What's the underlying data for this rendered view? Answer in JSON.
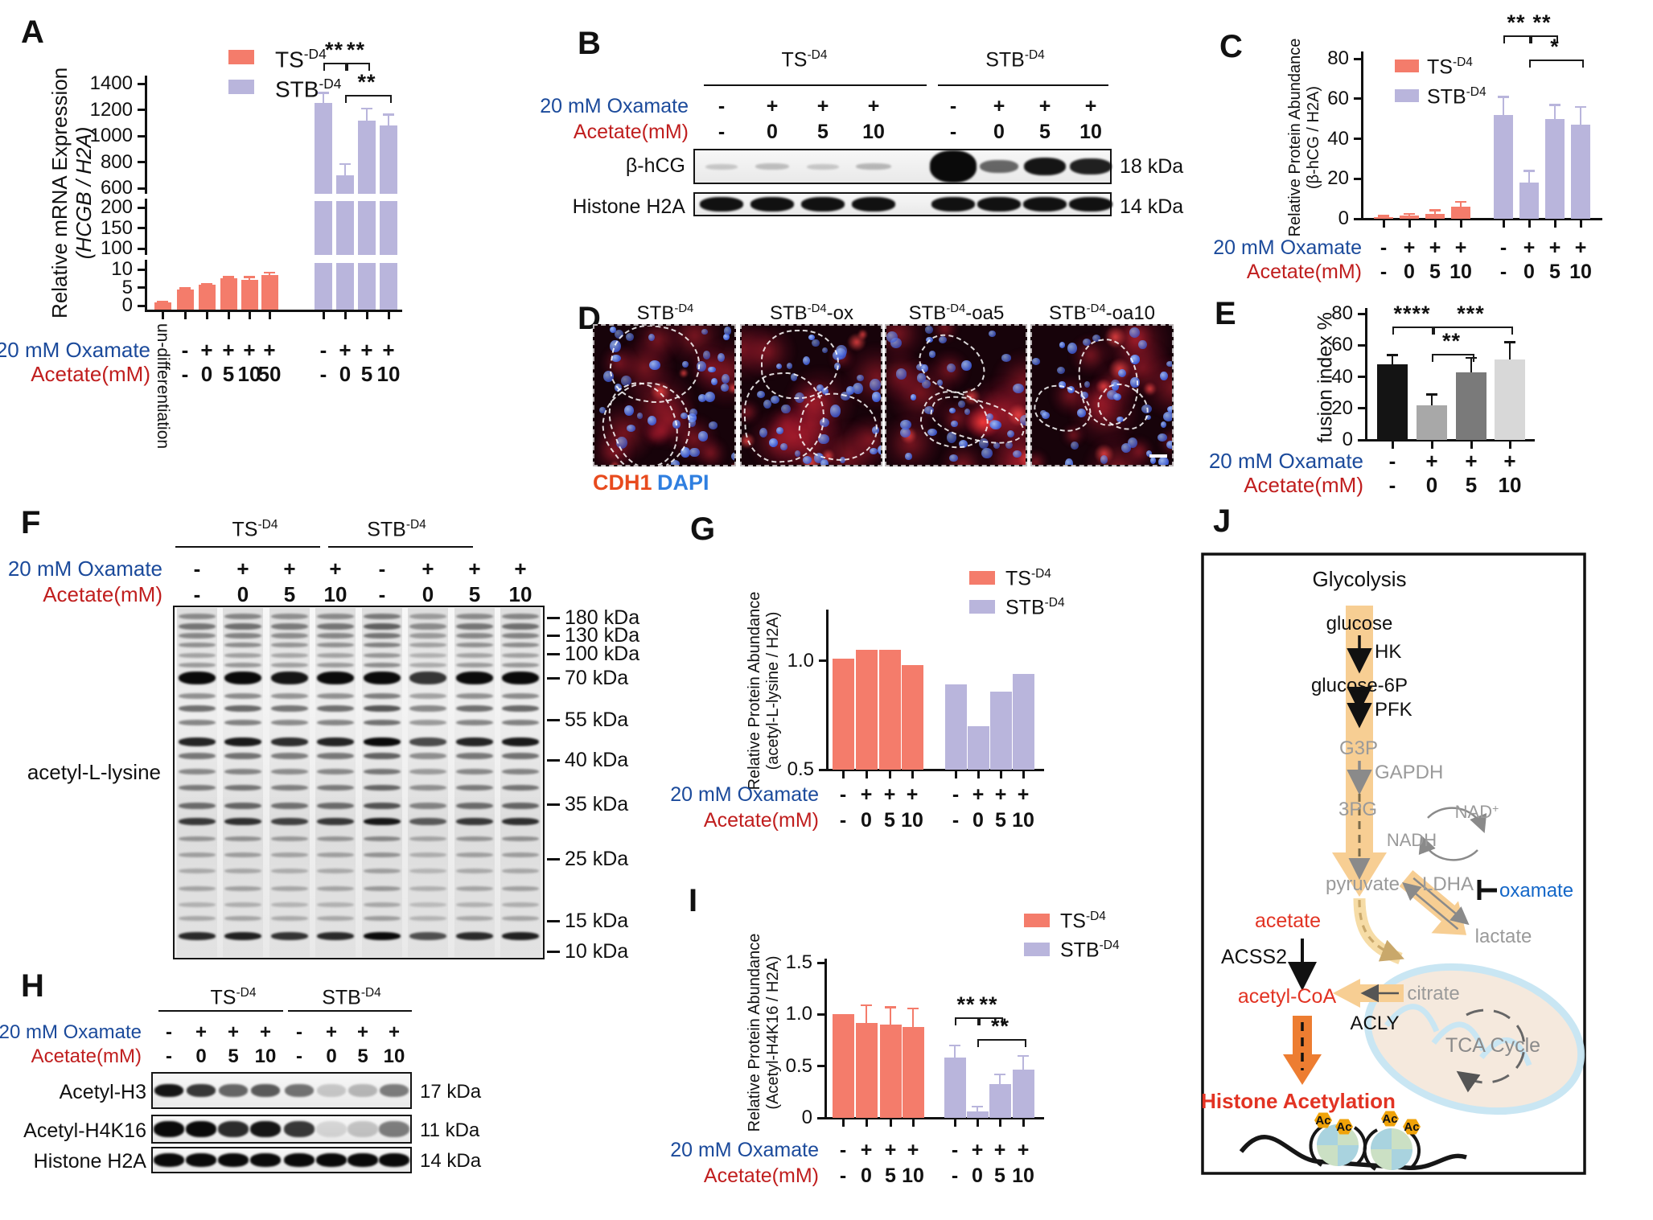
{
  "panels": {
    "A": "A",
    "B": "B",
    "C": "C",
    "D": "D",
    "E": "E",
    "F": "F",
    "G": "G",
    "H": "H",
    "I": "I",
    "J": "J"
  },
  "rows": {
    "oxamate": "20 mM Oxamate",
    "acetate": "Acetate(mM)"
  },
  "series_labels": {
    "ts": {
      "base": "TS",
      "sup": "-D4"
    },
    "stb": {
      "base": "STB",
      "sup": "-D4"
    }
  },
  "colors": {
    "ts": "#F47C6B",
    "stb": "#B9B5DC",
    "oxamate": "#1B4A9B",
    "acetate": "#C01E1E",
    "cdh1": "#E84B1E",
    "dapi": "#2F7FE0",
    "gray_text": "#9A9A9A",
    "tan": "#F7CE93",
    "orange": "#ED7D31",
    "red": "#E23323",
    "blue": "#1467C8",
    "black": "#111111"
  },
  "ylabels": {
    "A1": "Relative mRNA Expression",
    "A2": "(HCGB / H2A)",
    "C1": "Relative Protein Abundance",
    "C2": "(β-hCG / H2A)",
    "E1": "fusion index %",
    "G1": "Relative Protein Abundance",
    "G2": "(acetyl-L-lysine / H2A)",
    "I1": "Relative Protein Abundance",
    "I2": "(Acetyl-H4K16 / H2A)"
  },
  "chart_data": [
    {
      "panel": "A",
      "type": "bar",
      "title": "",
      "ylabel": "Relative mRNA Expression (HCGB / H2A)",
      "ylim": [
        0,
        1400
      ],
      "axis_breaks": [
        [
          10,
          100
        ],
        [
          200,
          600
        ]
      ],
      "legend_position": "top-left",
      "yticks": [
        {
          "v": 0,
          "l": "0"
        },
        {
          "v": 5,
          "l": "5"
        },
        {
          "v": 10,
          "l": "10"
        },
        {
          "v": 100,
          "l": "100"
        },
        {
          "v": 150,
          "l": "150"
        },
        {
          "v": 200,
          "l": "200"
        },
        {
          "v": 600,
          "l": "600"
        },
        {
          "v": 800,
          "l": "800"
        },
        {
          "v": 1000,
          "l": "1000"
        },
        {
          "v": 1200,
          "l": "1200"
        },
        {
          "v": 1400,
          "l": "1400"
        }
      ],
      "categories": [
        "un-differentiation",
        "TS -/-",
        "TS +/0",
        "TS +/5",
        "TS +/10",
        "TS +/50",
        "STB -/-",
        "STB +/0",
        "STB +/5",
        "STB +/10"
      ],
      "series": [
        {
          "name": "TS-D4",
          "key": "ts",
          "values": [
            1,
            4.5,
            5.7,
            7.6,
            7.1,
            8.5
          ],
          "errors": [
            0.15,
            0.3,
            0.3,
            0.35,
            0.8,
            0.7
          ]
        },
        {
          "name": "STB-D4",
          "key": "stb",
          "values": [
            1250,
            700,
            1120,
            1080
          ],
          "errors": [
            80,
            85,
            90,
            85
          ]
        }
      ],
      "xrows": {
        "oxamate": [
          [
            "",
            "-",
            "+",
            "+",
            "+",
            "+"
          ],
          [
            "-",
            "+",
            "+",
            "+"
          ]
        ],
        "acetate": [
          [
            "",
            "-",
            "0",
            "5",
            "10",
            "50"
          ],
          [
            "-",
            "0",
            "5",
            "10"
          ]
        ]
      },
      "sig": [
        {
          "label": "**",
          "g": 1,
          "i1": 0,
          "i2": 1
        },
        {
          "label": "**",
          "g": 1,
          "i1": 1,
          "i2": 2
        },
        {
          "label": "**",
          "g": 1,
          "i1": 1,
          "i2": 3
        }
      ],
      "rotated_xlabel": "un-differentiation"
    },
    {
      "panel": "C",
      "type": "bar",
      "title": "",
      "ylabel": "Relative Protein Abundance (β-hCG / H2A)",
      "ylim": [
        0,
        80
      ],
      "legend_position": "top-left",
      "yticks": [
        {
          "v": 0,
          "l": "0"
        },
        {
          "v": 20,
          "l": "20"
        },
        {
          "v": 40,
          "l": "40"
        },
        {
          "v": 60,
          "l": "60"
        },
        {
          "v": 80,
          "l": "80"
        }
      ],
      "categories": [
        "TS -/-",
        "TS +/0",
        "TS +/5",
        "TS +/10",
        "STB -/-",
        "STB +/0",
        "STB +/5",
        "STB +/10"
      ],
      "series": [
        {
          "name": "TS-D4",
          "key": "ts",
          "values": [
            1,
            1.5,
            2.5,
            6
          ],
          "errors": [
            0.5,
            1,
            1.8,
            2.5
          ]
        },
        {
          "name": "STB-D4",
          "key": "stb",
          "values": [
            52,
            18,
            50,
            47
          ],
          "errors": [
            9,
            6,
            7,
            9
          ]
        }
      ],
      "xrows": {
        "oxamate": [
          [
            "-",
            "+",
            "+",
            "+"
          ],
          [
            "-",
            "+",
            "+",
            "+"
          ]
        ],
        "acetate": [
          [
            "-",
            "0",
            "5",
            "10"
          ],
          [
            "-",
            "0",
            "5",
            "10"
          ]
        ]
      },
      "sig": [
        {
          "label": "**",
          "g": 1,
          "i1": 0,
          "i2": 1
        },
        {
          "label": "**",
          "g": 1,
          "i1": 1,
          "i2": 2
        },
        {
          "label": "*",
          "g": 1,
          "i1": 1,
          "i2": 3
        }
      ]
    },
    {
      "panel": "E",
      "type": "bar",
      "title": "",
      "ylabel": "fusion index %",
      "ylim": [
        0,
        80
      ],
      "yticks": [
        {
          "v": 0,
          "l": "0"
        },
        {
          "v": 20,
          "l": "20"
        },
        {
          "v": 40,
          "l": "40"
        },
        {
          "v": 60,
          "l": "60"
        },
        {
          "v": 80,
          "l": "80"
        }
      ],
      "categories": [
        "-/-",
        "+/0",
        "+/5",
        "+/10"
      ],
      "series": [
        {
          "name": "STB-D4 fusion",
          "colors": [
            "#141414",
            "#A8A8A8",
            "#7A7A7A",
            "#D8D8D8"
          ],
          "err_color": "#141414",
          "values": [
            48,
            22,
            43,
            51
          ],
          "errors": [
            6,
            7,
            9,
            11
          ]
        }
      ],
      "xrows": {
        "oxamate": [
          [
            "-",
            "+",
            "+",
            "+"
          ]
        ],
        "acetate": [
          [
            "-",
            "0",
            "5",
            "10"
          ]
        ]
      },
      "sig": [
        {
          "label": "****",
          "g": 0,
          "i1": 0,
          "i2": 1
        },
        {
          "label": "**",
          "g": 0,
          "i1": 1,
          "i2": 2
        },
        {
          "label": "***",
          "g": 0,
          "i1": 1,
          "i2": 3
        }
      ]
    },
    {
      "panel": "G",
      "type": "bar",
      "title": "",
      "ylabel": "Relative Protein Abundance (acetyl-L-lysine / H2A)",
      "ylim": [
        0.5,
        1.25
      ],
      "legend_position": "top-right",
      "yticks": [
        {
          "v": 0.5,
          "l": "0.5"
        },
        {
          "v": 1.0,
          "l": "1.0"
        }
      ],
      "categories": [
        "TS -/-",
        "TS +/0",
        "TS +/5",
        "TS +/10",
        "STB -/-",
        "STB +/0",
        "STB +/5",
        "STB +/10"
      ],
      "series": [
        {
          "name": "TS-D4",
          "key": "ts",
          "values": [
            1.01,
            1.05,
            1.05,
            0.98
          ],
          "errors": [
            0,
            0,
            0,
            0
          ]
        },
        {
          "name": "STB-D4",
          "key": "stb",
          "values": [
            0.89,
            0.7,
            0.86,
            0.94
          ],
          "errors": [
            0,
            0,
            0,
            0
          ]
        }
      ],
      "xrows": {
        "oxamate": [
          [
            "-",
            "+",
            "+",
            "+"
          ],
          [
            "-",
            "+",
            "+",
            "+"
          ]
        ],
        "acetate": [
          [
            "-",
            "0",
            "5",
            "10"
          ],
          [
            "-",
            "0",
            "5",
            "10"
          ]
        ]
      },
      "sig": []
    },
    {
      "panel": "I",
      "type": "bar",
      "title": "",
      "ylabel": "Relative Protein Abundance (Acetyl-H4K16 / H2A)",
      "ylim": [
        0,
        1.5
      ],
      "legend_position": "top-right",
      "yticks": [
        {
          "v": 0,
          "l": "0"
        },
        {
          "v": 0.5,
          "l": "0.5"
        },
        {
          "v": 1.0,
          "l": "1.0"
        },
        {
          "v": 1.5,
          "l": "1.5"
        }
      ],
      "categories": [
        "TS -/-",
        "TS +/0",
        "TS +/5",
        "TS +/10",
        "STB -/-",
        "STB +/0",
        "STB +/5",
        "STB +/10"
      ],
      "series": [
        {
          "name": "TS-D4",
          "key": "ts",
          "values": [
            1.0,
            0.92,
            0.9,
            0.88
          ],
          "errors": [
            0,
            0.17,
            0.17,
            0.18
          ]
        },
        {
          "name": "STB-D4",
          "key": "stb",
          "values": [
            0.58,
            0.06,
            0.33,
            0.47
          ],
          "errors": [
            0.12,
            0.05,
            0.09,
            0.13
          ]
        }
      ],
      "xrows": {
        "oxamate": [
          [
            "-",
            "+",
            "+",
            "+"
          ],
          [
            "-",
            "+",
            "+",
            "+"
          ]
        ],
        "acetate": [
          [
            "-",
            "0",
            "5",
            "10"
          ],
          [
            "-",
            "0",
            "5",
            "10"
          ]
        ]
      },
      "sig": [
        {
          "label": "**",
          "g": 1,
          "i1": 0,
          "i2": 1
        },
        {
          "label": "**",
          "g": 1,
          "i1": 1,
          "i2": 2
        },
        {
          "label": "**",
          "g": 1,
          "i1": 1,
          "i2": 3
        }
      ]
    }
  ],
  "panelB": {
    "oxamate": [
      "-",
      "+",
      "+",
      "+",
      "-",
      "+",
      "+",
      "+"
    ],
    "acetate": [
      "-",
      "0",
      "5",
      "10",
      "-",
      "0",
      "5",
      "10"
    ],
    "blots": [
      {
        "label": "β-hCG",
        "kda": "18 kDa",
        "intensities": [
          0.18,
          0.22,
          0.18,
          0.25,
          1.0,
          0.6,
          0.95,
          0.9
        ]
      },
      {
        "label": "Histone H2A",
        "kda": "14 kDa",
        "intensities": [
          0.97,
          0.97,
          0.97,
          0.97,
          0.97,
          0.97,
          0.97,
          0.97
        ]
      }
    ]
  },
  "panelD": {
    "labels": [
      {
        "base": "STB",
        "sup": "-D4",
        "suffix": ""
      },
      {
        "base": "STB",
        "sup": "-D4",
        "suffix": "-ox"
      },
      {
        "base": "STB",
        "sup": "-D4",
        "suffix": "-oa5"
      },
      {
        "base": "STB",
        "sup": "-D4",
        "suffix": "-oa10"
      }
    ],
    "legend": [
      {
        "text": "CDH1",
        "color": "cdh1"
      },
      {
        "text": "DAPI",
        "color": "dapi"
      }
    ]
  },
  "panelF": {
    "label": "acetyl-L-lysine",
    "oxamate": [
      "-",
      "+",
      "+",
      "+",
      "-",
      "+",
      "+",
      "+"
    ],
    "acetate": [
      "-",
      "0",
      "5",
      "10",
      "-",
      "0",
      "5",
      "10"
    ],
    "markers": [
      "180 kDa",
      "130 kDa",
      "100 kDa",
      "70 kDa",
      "55 kDa",
      "40 kDa",
      "35 kDa",
      "25 kDa",
      "15 kDa",
      "10 kDa"
    ],
    "bands": [
      {
        "f": 0.03,
        "i": 0.4,
        "h": 7
      },
      {
        "f": 0.058,
        "i": 0.5,
        "h": 8
      },
      {
        "f": 0.085,
        "i": 0.42,
        "h": 7
      },
      {
        "f": 0.112,
        "i": 0.38,
        "h": 6
      },
      {
        "f": 0.14,
        "i": 0.3,
        "h": 6
      },
      {
        "f": 0.168,
        "i": 0.34,
        "h": 6
      },
      {
        "f": 0.205,
        "i": 1.0,
        "h": 16
      },
      {
        "f": 0.255,
        "i": 0.4,
        "h": 7
      },
      {
        "f": 0.292,
        "i": 0.55,
        "h": 8
      },
      {
        "f": 0.33,
        "i": 0.45,
        "h": 7
      },
      {
        "f": 0.385,
        "i": 0.88,
        "h": 11
      },
      {
        "f": 0.425,
        "i": 0.5,
        "h": 8
      },
      {
        "f": 0.47,
        "i": 0.42,
        "h": 7
      },
      {
        "f": 0.515,
        "i": 0.48,
        "h": 7
      },
      {
        "f": 0.565,
        "i": 0.55,
        "h": 8
      },
      {
        "f": 0.61,
        "i": 0.78,
        "h": 9
      },
      {
        "f": 0.66,
        "i": 0.35,
        "h": 6
      },
      {
        "f": 0.705,
        "i": 0.3,
        "h": 6
      },
      {
        "f": 0.75,
        "i": 0.25,
        "h": 6
      },
      {
        "f": 0.8,
        "i": 0.28,
        "h": 6
      },
      {
        "f": 0.845,
        "i": 0.22,
        "h": 6
      },
      {
        "f": 0.885,
        "i": 0.26,
        "h": 6
      },
      {
        "f": 0.935,
        "i": 0.85,
        "h": 10
      }
    ],
    "lane_mult": [
      1,
      1.05,
      0.95,
      1,
      1.2,
      0.8,
      1,
      1.05
    ]
  },
  "panelH": {
    "oxamate": [
      "-",
      "+",
      "+",
      "+",
      "-",
      "+",
      "+",
      "+"
    ],
    "acetate": [
      "-",
      "0",
      "5",
      "10",
      "-",
      "0",
      "5",
      "10"
    ],
    "rows": [
      {
        "label": "Acetyl-H3",
        "kda": "17 kDa",
        "intensities": [
          0.95,
          0.8,
          0.6,
          0.65,
          0.55,
          0.18,
          0.25,
          0.5
        ]
      },
      {
        "label": "Acetyl-H4K16",
        "kda": "11 kDa",
        "intensities": [
          1,
          1,
          0.85,
          0.95,
          0.8,
          0.12,
          0.2,
          0.5
        ]
      },
      {
        "label": "Histone H2A",
        "kda": "14 kDa",
        "intensities": [
          1,
          1,
          1,
          1,
          1,
          1,
          1,
          1
        ]
      }
    ]
  },
  "panelJ": {
    "glycolysis": "Glycolysis",
    "glucose": "glucose",
    "hk": "HK",
    "glucose6p": "glucose-6P",
    "pfk": "PFK",
    "g3p": "G3P",
    "gapdh": "GAPDH",
    "pg3": "3PG",
    "nadh": "NADH",
    "nad": "NAD",
    "nad_sup": "+",
    "pyruvate": "pyruvate",
    "ldha": "LDHA",
    "oxamate": "oxamate",
    "lactate": "lactate",
    "acetate": "acetate",
    "acss2": "ACSS2",
    "acetylcoa": "acetyl-CoA",
    "citrate": "citrate",
    "acly": "ACLY",
    "tca": "TCA Cycle",
    "histone": "Histone Acetylation",
    "ac": "Ac"
  }
}
